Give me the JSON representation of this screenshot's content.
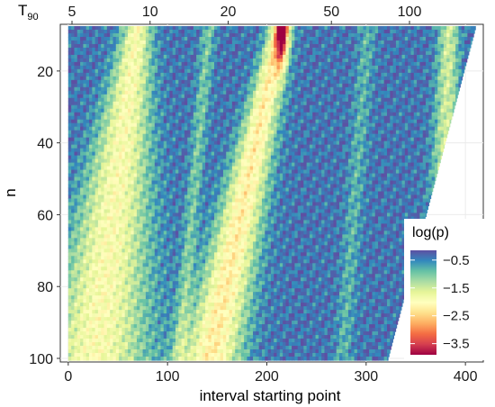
{
  "chart_data": {
    "type": "heatmap",
    "title": "",
    "xlabel": "interval starting point",
    "ylabel": "n",
    "top_axis_label": "T",
    "top_axis_label_subscript": "90",
    "xlim": [
      -8,
      418
    ],
    "ylim": [
      7,
      101
    ],
    "x_ticks": [
      0,
      100,
      200,
      300,
      400
    ],
    "y_ticks": [
      20,
      40,
      60,
      80,
      100
    ],
    "top_ticks": [
      5,
      10,
      20,
      50,
      100
    ],
    "grid": true,
    "grid_color": "#ebebeb",
    "legend_position": "right-bottom",
    "color_scale": {
      "title": "log(p)",
      "min": -3.9,
      "max": -0.15,
      "labels": [
        "-0.5",
        "-1.5",
        "-2.5",
        "-3.5"
      ],
      "label_values": [
        -0.5,
        -1.5,
        -2.5,
        -3.5
      ],
      "palette": [
        "#9e0142",
        "#d53e4f",
        "#f46d43",
        "#fdae61",
        "#fee08b",
        "#ffffbf",
        "#e6f598",
        "#abdda4",
        "#66c2a5",
        "#3288bd",
        "#5e4fa2"
      ]
    },
    "domain": {
      "n_min": 8,
      "n_max": 100,
      "x_start": 0,
      "x_end_at_n_min": 410,
      "x_end_at_n_max": 322
    }
  }
}
